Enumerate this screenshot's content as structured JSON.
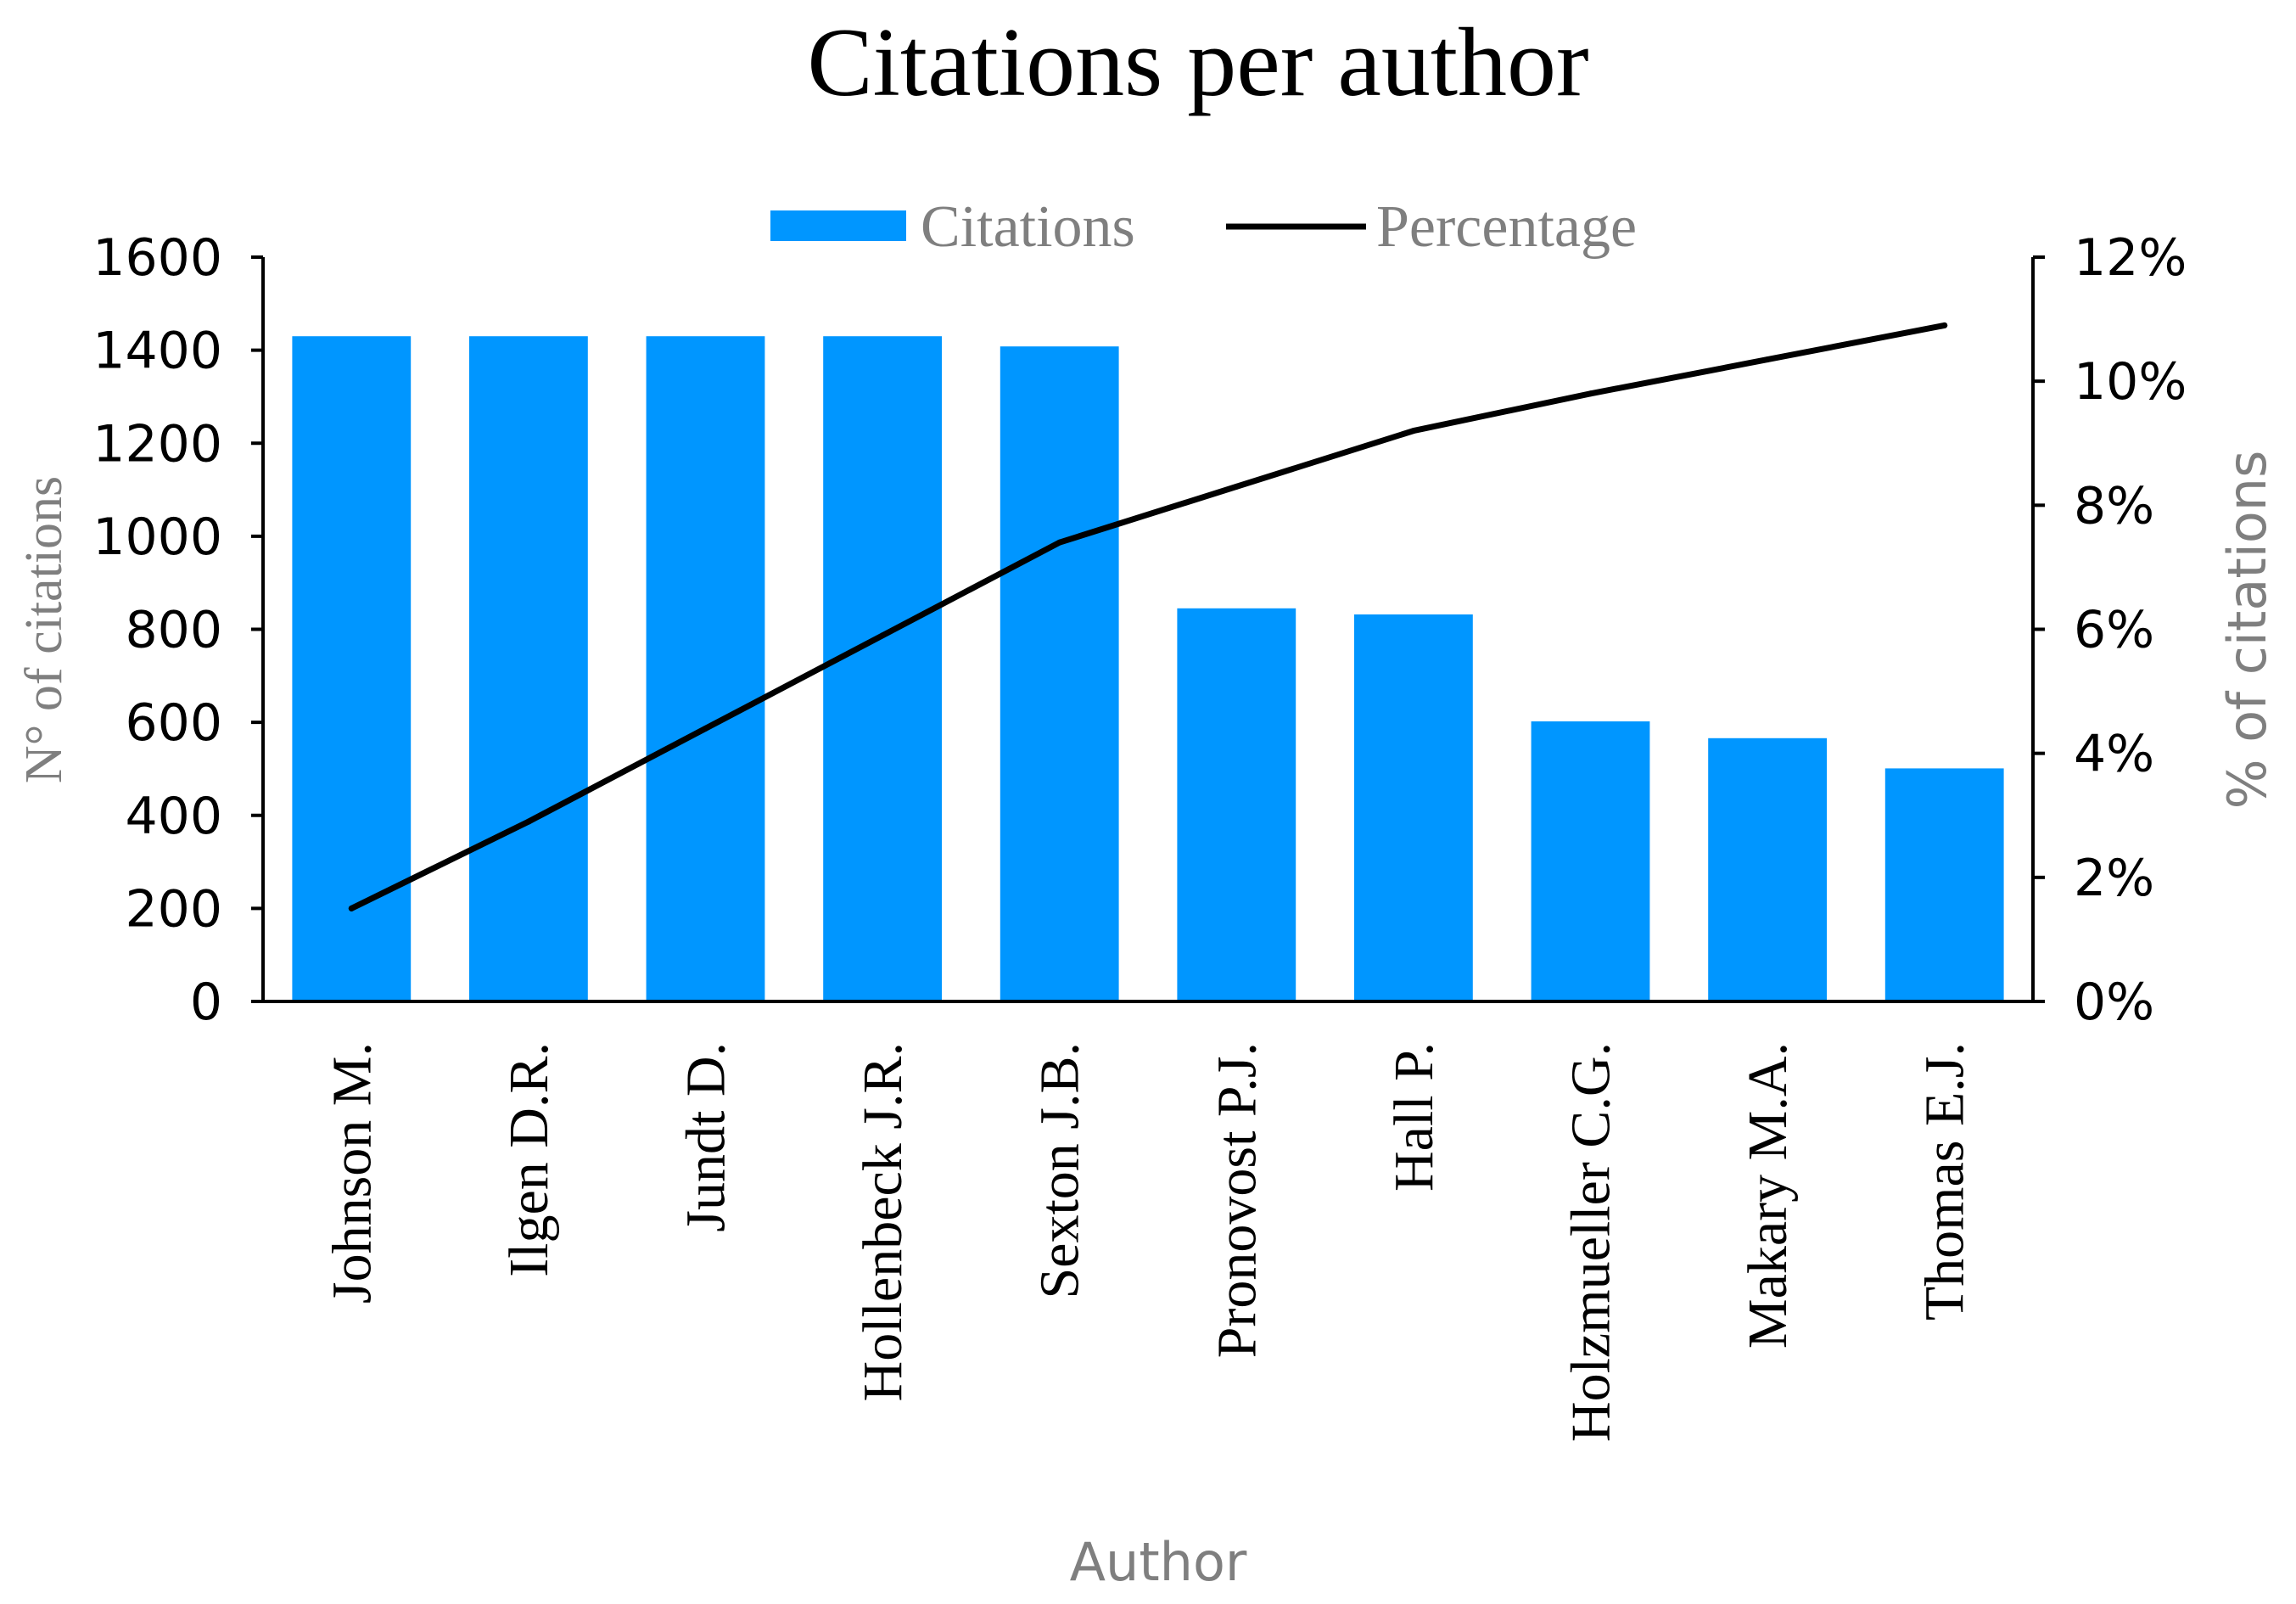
{
  "chart_data": {
    "type": "bar",
    "title": "Citations per author",
    "categories": [
      "Johnson M.",
      "Ilgen D.R.",
      "Jundt D.",
      "Hollenbeck J.R.",
      "Sexton J.B.",
      "Pronovost P.J.",
      "Hall P.",
      "Holzmueller C.G.",
      "Makary M.A.",
      "Thomas E.J."
    ],
    "series": [
      {
        "name": "Citations",
        "type": "bar",
        "axis": "left",
        "color": "#0096ff",
        "values": [
          1430,
          1430,
          1430,
          1430,
          1408,
          845,
          832,
          602,
          566,
          501
        ]
      },
      {
        "name": "Percentage",
        "type": "line",
        "axis": "right",
        "color": "#000000",
        "values": [
          1.5,
          2.9,
          4.4,
          5.9,
          7.4,
          8.3,
          9.2,
          9.8,
          10.35,
          10.9
        ]
      }
    ],
    "xlabel": "Author",
    "ylabel": "N° of citations",
    "y2label": "% of citations",
    "ylim": [
      0,
      1600
    ],
    "y2lim": [
      0,
      12
    ],
    "yticks": [
      "0",
      "200",
      "400",
      "600",
      "800",
      "1000",
      "1200",
      "1400",
      "1600"
    ],
    "y2ticks": [
      "0%",
      "2%",
      "4%",
      "6%",
      "8%",
      "10%",
      "12%"
    ],
    "legend": "top",
    "grid": false
  }
}
